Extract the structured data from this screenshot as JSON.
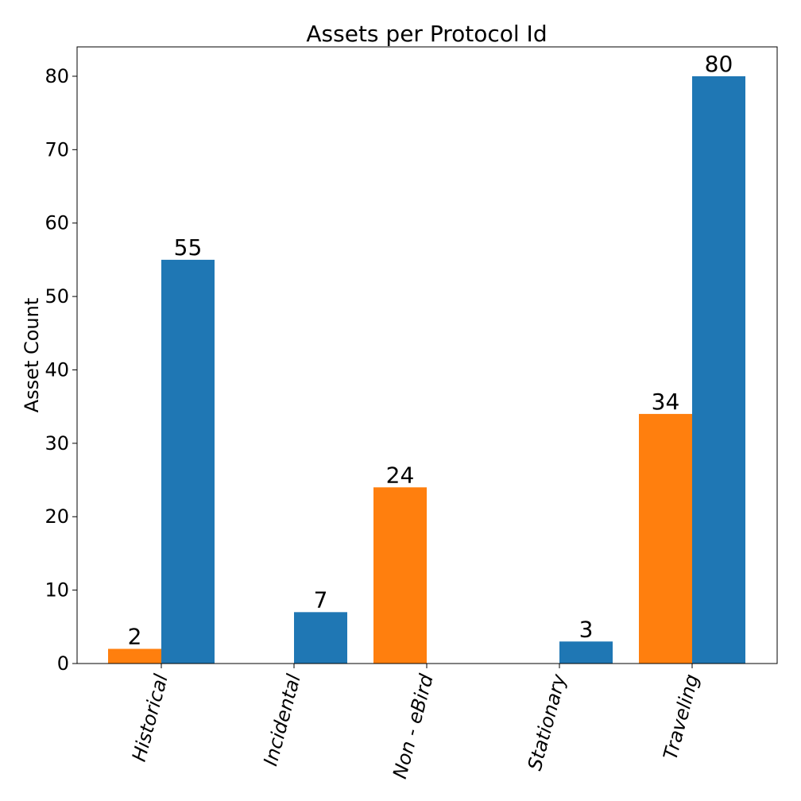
{
  "chart_data": {
    "type": "bar",
    "title": "Assets per Protocol Id",
    "xlabel": "",
    "ylabel": "Asset Count",
    "categories": [
      "Historical",
      "Incidental",
      "Non - eBird",
      "Stationary",
      "Traveling"
    ],
    "series": [
      {
        "color": "#ff7f0e",
        "values": [
          2,
          0,
          24,
          0,
          34
        ],
        "labels": [
          "2",
          "",
          "24",
          "",
          "34"
        ]
      },
      {
        "color": "#1f77b4",
        "values": [
          55,
          7,
          0,
          3,
          80
        ],
        "labels": [
          "55",
          "7",
          "",
          "3",
          "80"
        ]
      }
    ],
    "ylim": [
      0,
      84
    ],
    "yticks": [
      0,
      10,
      20,
      30,
      40,
      50,
      60,
      70,
      80
    ],
    "grid": false,
    "legend": "none",
    "xtick_rotation": "75 degrees"
  }
}
